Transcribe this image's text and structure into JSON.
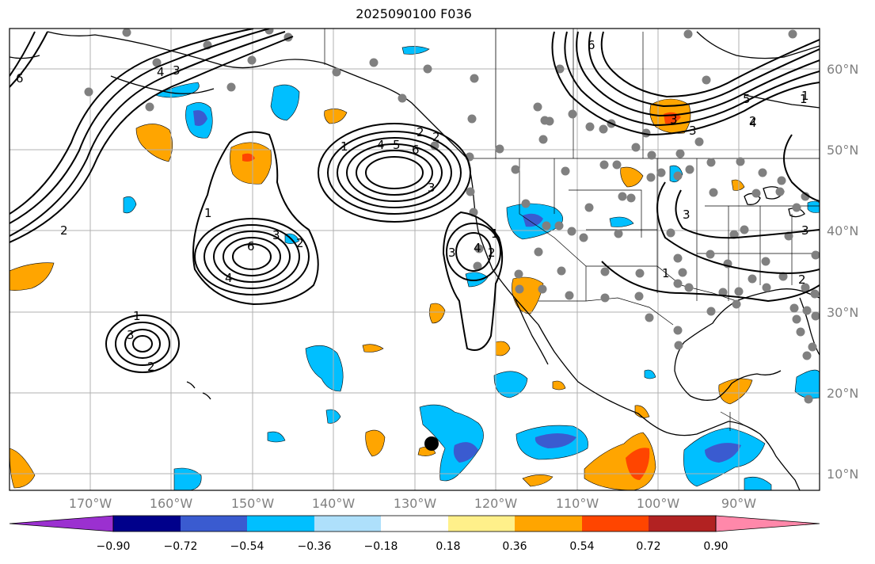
{
  "title": "2025090100 F036",
  "lat_labels": [
    "60°N",
    "50°N",
    "40°N",
    "30°N",
    "20°N",
    "10°N"
  ],
  "lon_labels": [
    "170°W",
    "160°W",
    "150°W",
    "140°W",
    "130°W",
    "120°W",
    "110°W",
    "100°W",
    "90°W"
  ],
  "colorbar": {
    "ticks": [
      "−0.90",
      "−0.72",
      "−0.54",
      "−0.36",
      "−0.18",
      "0.18",
      "0.36",
      "0.54",
      "0.72",
      "0.90"
    ],
    "colors": [
      "#9b30d0",
      "#00008b",
      "#3a5bd0",
      "#00bfff",
      "#aee0fb",
      "#ffffff",
      "#fff08a",
      "#ffa500",
      "#ff4500",
      "#b22222",
      "#ff88aa"
    ]
  },
  "contour_labels": [
    "6",
    "4",
    "3",
    "2",
    "1",
    "6",
    "4",
    "3",
    "2",
    "1",
    "3",
    "2",
    "6",
    "5",
    "4",
    "3",
    "2",
    "1",
    "3",
    "4",
    "2",
    "1",
    "3",
    "3",
    "2",
    "1",
    "6",
    "5",
    "4",
    "3",
    "2",
    "1",
    "3",
    "2",
    "1"
  ],
  "colors": {
    "negative_light": "#00bfff",
    "negative_mid": "#3a5bd0",
    "positive_light": "#ffa500",
    "positive_strong": "#ff4500",
    "station_dot": "#808080",
    "marker": "#000000"
  }
}
